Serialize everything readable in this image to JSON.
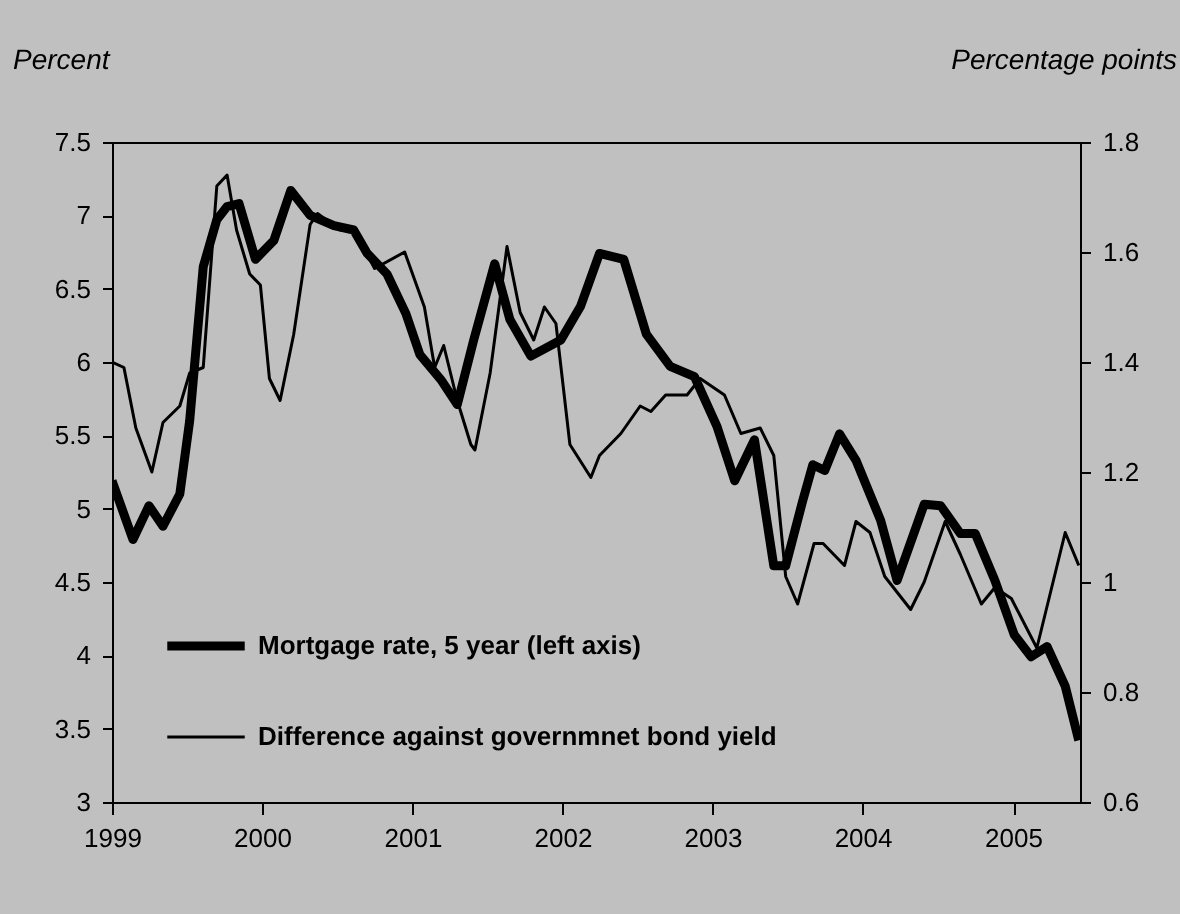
{
  "chart_data": {
    "type": "line",
    "ylabel": "Percent",
    "y2label": "Percentage points",
    "xlim": [
      "1999-01-01",
      "2005-06-13"
    ],
    "xticks": [
      "1999",
      "2000",
      "2001",
      "2002",
      "2003",
      "2004",
      "2005"
    ],
    "ylim": [
      3,
      7.5
    ],
    "yticks": [
      3,
      3.5,
      4,
      4.5,
      5,
      5.5,
      6,
      6.5,
      7,
      7.5
    ],
    "y2lim": [
      0.6,
      1.8
    ],
    "y2ticks": [
      0.6,
      0.8,
      1,
      1.2,
      1.4,
      1.6,
      1.8
    ],
    "grid": false,
    "legend": "bottom left",
    "series": [
      {
        "name": "Mortgage rate, 5 year (left axis)",
        "color": "#000000",
        "x": [
          "1999-01-01",
          "1999-02-21",
          "1999-04-01",
          "1999-05-05",
          "1999-06-15",
          "1999-07-09",
          "1999-08-11",
          "1999-09-13",
          "1999-10-08",
          "1999-11-06",
          "1999-12-16",
          "2000-01-30",
          "2000-03-11",
          "2000-04-27",
          "2000-06-24",
          "2000-08-11",
          "2000-09-13",
          "2000-10-31",
          "2000-12-16",
          "2001-01-19",
          "2001-03-11",
          "2001-04-20",
          "2001-05-30",
          "2001-07-20",
          "2001-08-26",
          "2001-10-16",
          "2001-12-28",
          "2002-02-14",
          "2002-04-01",
          "2002-05-30",
          "2002-07-24",
          "2002-09-20",
          "2002-11-18",
          "2003-01-12",
          "2003-02-24",
          "2003-04-13",
          "2003-05-30",
          "2003-06-28",
          "2003-08-08",
          "2003-09-02",
          "2003-10-01",
          "2003-11-06",
          "2003-12-16",
          "2004-02-14",
          "2004-03-25",
          "2004-05-30",
          "2004-07-09",
          "2004-08-26",
          "2004-10-01",
          "2004-11-18",
          "2005-01-04",
          "2005-02-14",
          "2005-03-25",
          "2005-05-08",
          "2005-06-10"
        ],
        "values": [
          5.19,
          4.79,
          5.02,
          4.88,
          5.1,
          5.6,
          6.65,
          6.97,
          7.06,
          7.08,
          6.7,
          6.83,
          7.17,
          7.0,
          6.93,
          6.9,
          6.74,
          6.6,
          6.33,
          6.05,
          5.88,
          5.71,
          6.15,
          6.67,
          6.29,
          6.04,
          6.15,
          6.38,
          6.74,
          6.7,
          6.19,
          5.97,
          5.9,
          5.56,
          5.19,
          5.47,
          4.61,
          4.61,
          5.05,
          5.3,
          5.26,
          5.51,
          5.33,
          4.92,
          4.51,
          5.03,
          5.02,
          4.83,
          4.83,
          4.51,
          4.14,
          3.99,
          4.06,
          3.79,
          3.42
        ]
      },
      {
        "name": "Difference against governmnet bond yield",
        "color": "#000000",
        "axis": "y2",
        "x": [
          "1999-01-01",
          "1999-01-30",
          "1999-02-28",
          "1999-04-08",
          "1999-05-05",
          "1999-06-15",
          "1999-07-09",
          "1999-08-11",
          "1999-09-13",
          "1999-10-08",
          "1999-10-31",
          "1999-12-02",
          "1999-12-28",
          "2000-01-19",
          "2000-02-14",
          "2000-03-18",
          "2000-04-27",
          "2000-05-15",
          "2000-07-09",
          "2000-08-11",
          "2000-10-01",
          "2000-12-13",
          "2001-01-30",
          "2001-02-24",
          "2001-03-18",
          "2001-04-20",
          "2001-05-23",
          "2001-06-02",
          "2001-07-09",
          "2001-08-19",
          "2001-09-20",
          "2001-10-23",
          "2001-11-18",
          "2001-12-16",
          "2002-01-19",
          "2002-03-11",
          "2002-04-01",
          "2002-05-23",
          "2002-07-09",
          "2002-08-04",
          "2002-09-09",
          "2002-10-31",
          "2002-12-02",
          "2003-01-30",
          "2003-03-11",
          "2003-04-27",
          "2003-05-30",
          "2003-06-28",
          "2003-07-27",
          "2003-09-05",
          "2003-09-27",
          "2003-11-18",
          "2003-12-16",
          "2004-01-19",
          "2004-02-24",
          "2004-04-27",
          "2004-05-30",
          "2004-07-20",
          "2004-08-26",
          "2004-10-16",
          "2004-11-18",
          "2004-12-28",
          "2005-02-28",
          "2005-05-08",
          "2005-06-10"
        ],
        "values": [
          1.4,
          1.39,
          1.28,
          1.2,
          1.29,
          1.32,
          1.38,
          1.39,
          1.72,
          1.74,
          1.64,
          1.56,
          1.54,
          1.37,
          1.33,
          1.45,
          1.65,
          1.67,
          1.64,
          1.64,
          1.57,
          1.6,
          1.5,
          1.39,
          1.43,
          1.33,
          1.25,
          1.24,
          1.38,
          1.61,
          1.49,
          1.44,
          1.5,
          1.47,
          1.25,
          1.19,
          1.23,
          1.27,
          1.32,
          1.31,
          1.34,
          1.34,
          1.37,
          1.34,
          1.27,
          1.28,
          1.23,
          1.01,
          0.96,
          1.07,
          1.07,
          1.03,
          1.11,
          1.09,
          1.01,
          0.95,
          1.0,
          1.11,
          1.05,
          0.96,
          0.99,
          0.97,
          0.88,
          1.09,
          1.03
        ]
      }
    ]
  }
}
